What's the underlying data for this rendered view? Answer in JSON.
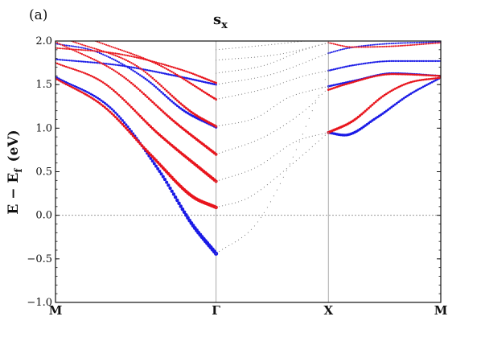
{
  "chart_data": {
    "type": "scatter",
    "panel_label": "(a)",
    "title": "s",
    "title_subscript": "x",
    "ylabel": "E − E",
    "ylabel_subscript": "f",
    "ylabel_unit": "(eV)",
    "ylim": [
      -1.0,
      2.0
    ],
    "yticks": [
      "−1.0",
      "−0.5",
      "0.0",
      "0.5",
      "1.0",
      "1.5",
      "2.0"
    ],
    "ytick_values": [
      -1.0,
      -0.5,
      0.0,
      0.5,
      1.0,
      1.5,
      2.0
    ],
    "k_points": [
      {
        "label": "M",
        "x": 0.0
      },
      {
        "label": "Γ",
        "x": 1.0
      },
      {
        "label": "X",
        "x": 1.7
      },
      {
        "label": "M",
        "x": 2.4
      }
    ],
    "fermi_level": 0.0,
    "grid": false,
    "colors": {
      "spin_up": "#e8141c",
      "spin_down": "#1a1ae6",
      "gray": "#888888",
      "axis": "#111111"
    },
    "series": [
      {
        "color": "blue",
        "bands": [
          {
            "points": [
              [
                0.0,
                1.59
              ],
              [
                0.35,
                1.22
              ],
              [
                0.65,
                0.5
              ],
              [
                0.85,
                -0.1
              ],
              [
                1.0,
                -0.44
              ]
            ]
          },
          {
            "points": [
              [
                0.0,
                1.97
              ],
              [
                0.25,
                1.88
              ],
              [
                0.55,
                1.58
              ],
              [
                0.8,
                1.2
              ],
              [
                1.0,
                1.01
              ]
            ]
          },
          {
            "points": [
              [
                0.0,
                1.79
              ],
              [
                0.4,
                1.72
              ],
              [
                0.75,
                1.6
              ],
              [
                1.0,
                1.5
              ]
            ]
          },
          {
            "points": [
              [
                1.7,
                1.86
              ],
              [
                1.8,
                1.91
              ],
              [
                2.0,
                1.96
              ],
              [
                2.4,
                1.99
              ]
            ]
          },
          {
            "points": [
              [
                1.7,
                1.66
              ],
              [
                1.85,
                1.72
              ],
              [
                2.1,
                1.77
              ],
              [
                2.4,
                1.77
              ]
            ]
          },
          {
            "points": [
              [
                1.7,
                1.48
              ],
              [
                1.85,
                1.54
              ],
              [
                2.1,
                1.63
              ],
              [
                2.4,
                1.6
              ]
            ]
          },
          {
            "points": [
              [
                1.7,
                0.95
              ],
              [
                1.8,
                0.92
              ],
              [
                2.0,
                1.12
              ],
              [
                2.2,
                1.38
              ],
              [
                2.4,
                1.58
              ]
            ]
          }
        ]
      },
      {
        "color": "red",
        "bands": [
          {
            "points": [
              [
                0.0,
                1.57
              ],
              [
                0.3,
                1.25
              ],
              [
                0.6,
                0.68
              ],
              [
                0.85,
                0.22
              ],
              [
                1.0,
                0.09
              ]
            ]
          },
          {
            "points": [
              [
                0.0,
                1.75
              ],
              [
                0.3,
                1.52
              ],
              [
                0.65,
                0.92
              ],
              [
                1.0,
                0.39
              ]
            ]
          },
          {
            "points": [
              [
                0.0,
                1.99
              ],
              [
                0.4,
                1.62
              ],
              [
                0.75,
                1.06
              ],
              [
                1.0,
                0.7
              ]
            ]
          },
          {
            "points": [
              [
                0.1,
                2.0
              ],
              [
                0.5,
                1.72
              ],
              [
                0.85,
                1.18
              ],
              [
                1.0,
                1.02
              ]
            ]
          },
          {
            "points": [
              [
                0.25,
                2.0
              ],
              [
                0.65,
                1.72
              ],
              [
                1.0,
                1.33
              ]
            ]
          },
          {
            "points": [
              [
                0.0,
                1.92
              ],
              [
                0.4,
                1.85
              ],
              [
                0.8,
                1.66
              ],
              [
                1.0,
                1.52
              ]
            ]
          },
          {
            "points": [
              [
                1.7,
                1.98
              ],
              [
                1.85,
                1.93
              ],
              [
                2.1,
                1.94
              ],
              [
                2.4,
                1.98
              ]
            ]
          },
          {
            "points": [
              [
                1.7,
                1.44
              ],
              [
                1.8,
                1.5
              ],
              [
                2.1,
                1.62
              ],
              [
                2.4,
                1.6
              ]
            ]
          },
          {
            "points": [
              [
                1.7,
                0.95
              ],
              [
                1.85,
                1.08
              ],
              [
                2.05,
                1.38
              ],
              [
                2.2,
                1.52
              ],
              [
                2.4,
                1.58
              ]
            ]
          }
        ]
      },
      {
        "color": "gray",
        "bands": [
          {
            "points": [
              [
                1.0,
                -0.44
              ],
              [
                1.25,
                -0.1
              ],
              [
                1.45,
                0.55
              ],
              [
                1.6,
                1.2
              ],
              [
                1.7,
                1.65
              ]
            ]
          },
          {
            "points": [
              [
                1.0,
                0.09
              ],
              [
                1.2,
                0.2
              ],
              [
                1.45,
                0.55
              ],
              [
                1.7,
                0.95
              ]
            ]
          },
          {
            "points": [
              [
                1.0,
                0.39
              ],
              [
                1.25,
                0.55
              ],
              [
                1.5,
                0.85
              ],
              [
                1.7,
                0.95
              ]
            ]
          },
          {
            "points": [
              [
                1.0,
                0.7
              ],
              [
                1.3,
                0.9
              ],
              [
                1.55,
                1.2
              ],
              [
                1.7,
                1.46
              ]
            ]
          },
          {
            "points": [
              [
                1.0,
                1.02
              ],
              [
                1.25,
                1.12
              ],
              [
                1.45,
                1.35
              ],
              [
                1.7,
                1.48
              ]
            ]
          },
          {
            "points": [
              [
                1.0,
                1.33
              ],
              [
                1.3,
                1.45
              ],
              [
                1.55,
                1.6
              ],
              [
                1.7,
                1.66
              ]
            ]
          },
          {
            "points": [
              [
                1.0,
                1.5
              ],
              [
                1.35,
                1.62
              ],
              [
                1.7,
                1.86
              ]
            ]
          },
          {
            "points": [
              [
                1.0,
                1.63
              ],
              [
                1.3,
                1.72
              ],
              [
                1.55,
                1.9
              ],
              [
                1.7,
                1.98
              ]
            ]
          },
          {
            "points": [
              [
                1.0,
                1.78
              ],
              [
                1.4,
                1.85
              ],
              [
                1.7,
                1.98
              ]
            ]
          },
          {
            "points": [
              [
                1.0,
                1.9
              ],
              [
                1.35,
                1.96
              ],
              [
                1.55,
                2.0
              ]
            ]
          }
        ]
      }
    ]
  }
}
